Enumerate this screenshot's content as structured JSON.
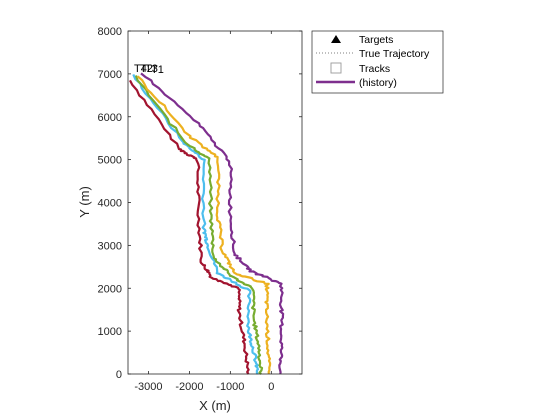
{
  "chart_data": {
    "type": "line",
    "title": "",
    "xlabel": "X (m)",
    "ylabel": "Y (m)",
    "xlim": [
      -3500,
      750
    ],
    "ylim": [
      0,
      8000
    ],
    "xticks": [
      -3000,
      -2000,
      -1000,
      0
    ],
    "xtick_labels": [
      "-3000",
      "-2000",
      "-1000",
      "0"
    ],
    "yticks": [
      0,
      1000,
      2000,
      3000,
      4000,
      5000,
      6000,
      7000,
      8000
    ],
    "ytick_labels": [
      "0",
      "1000",
      "2000",
      "3000",
      "4000",
      "5000",
      "6000",
      "7000",
      "8000"
    ],
    "grid": false,
    "legend": {
      "placement": "outside-top-right",
      "entries": [
        {
          "label": "Targets",
          "marker": "triangle",
          "color": "#000000"
        },
        {
          "label": "True Trajectory",
          "style": "dotted",
          "color": "#555555"
        },
        {
          "label": "Tracks",
          "marker": "square-open",
          "color": "#999999"
        },
        {
          "label": "(history)",
          "style": "solid",
          "color": "#7E2F8E"
        }
      ]
    },
    "annotations": [
      "T4",
      "T2",
      "T3",
      "T1"
    ],
    "series": [
      {
        "color": "#A2142F",
        "x": [
          -3450,
          -2250,
          -1800,
          -1780,
          -1700,
          -1450,
          -800,
          -780,
          -650,
          -560
        ],
        "y": [
          6850,
          5250,
          5000,
          3700,
          2600,
          2250,
          2000,
          1400,
          700,
          0
        ]
      },
      {
        "color": "#4DBEEE",
        "x": [
          -3400,
          -2150,
          -1650,
          -1650,
          -1550,
          -1300,
          -550,
          -550,
          -420,
          -330
        ],
        "y": [
          7000,
          5400,
          5000,
          3400,
          3000,
          2350,
          1950,
          1000,
          500,
          0
        ]
      },
      {
        "color": "#77AC30",
        "x": [
          -3340,
          -2100,
          -1500,
          -1480,
          -1400,
          -1000,
          -450,
          -430,
          -300,
          -250
        ],
        "y": [
          6950,
          5400,
          5000,
          3700,
          2700,
          2300,
          2000,
          1300,
          600,
          0
        ]
      },
      {
        "color": "#EDB120",
        "x": [
          -3280,
          -2000,
          -1300,
          -1300,
          -1200,
          -900,
          -100,
          -120,
          -80,
          -60
        ],
        "y": [
          6950,
          5550,
          5050,
          3700,
          2900,
          2350,
          2100,
          1500,
          700,
          0
        ]
      },
      {
        "color": "#7E2F8E",
        "x": [
          -3150,
          -1800,
          -1000,
          -1000,
          -900,
          -500,
          250,
          250,
          250,
          220
        ],
        "y": [
          7000,
          5850,
          4950,
          3800,
          2800,
          2400,
          2100,
          1400,
          700,
          0
        ]
      }
    ]
  }
}
